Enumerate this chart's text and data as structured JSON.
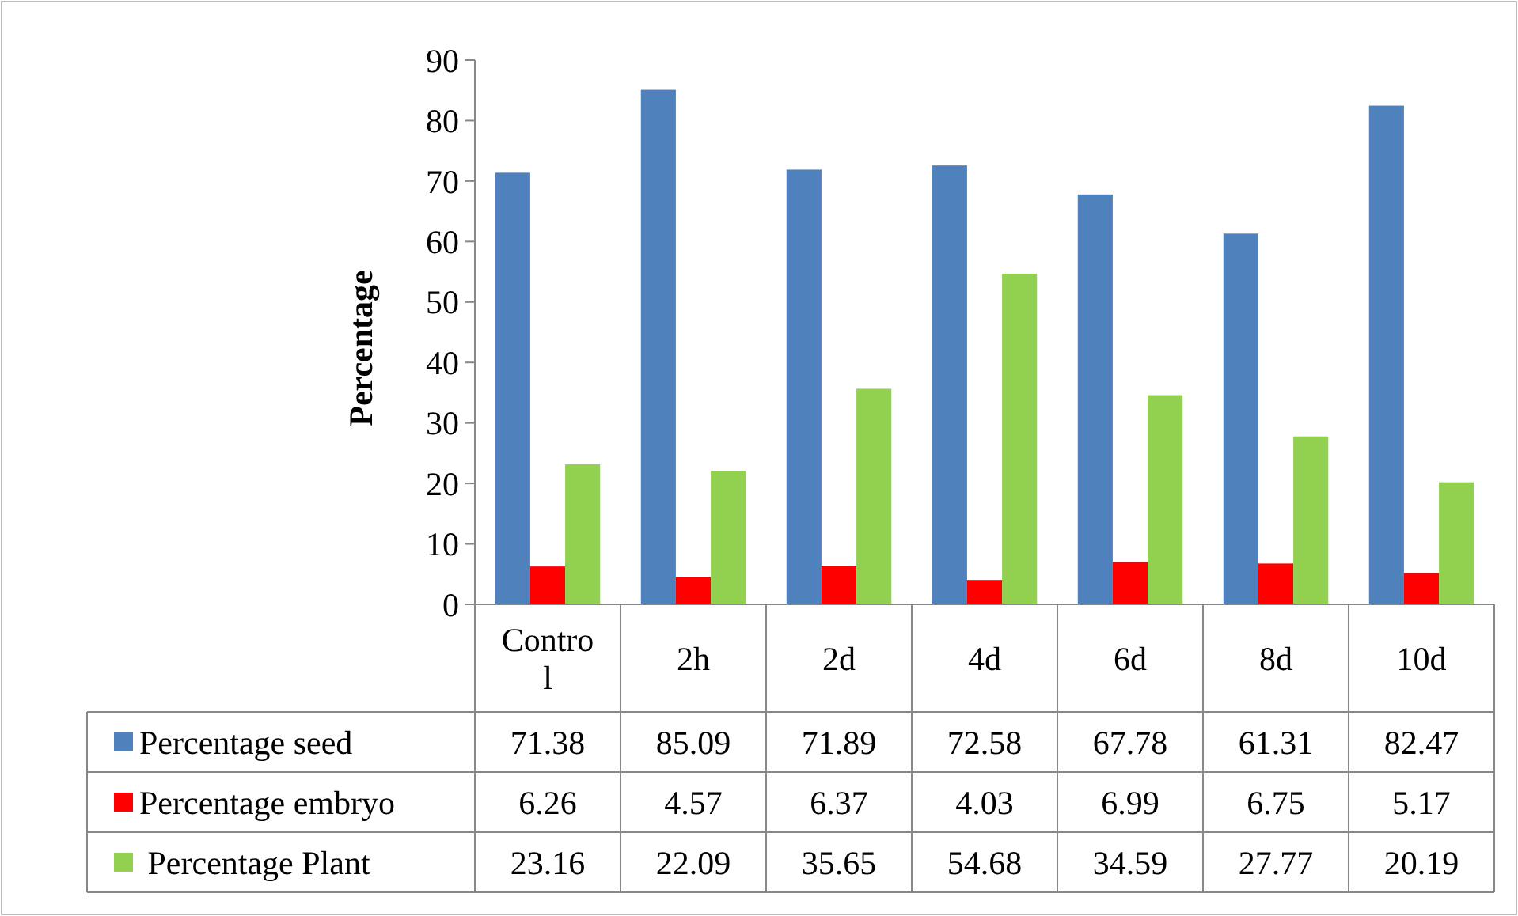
{
  "chart_data": {
    "type": "bar",
    "ylabel": "Percentage",
    "categories": [
      "Control",
      "2h",
      "2d",
      "4d",
      "6d",
      "8d",
      "10d"
    ],
    "series": [
      {
        "name": "Percentage seed",
        "color": "#4f81bd",
        "values": [
          71.38,
          85.09,
          71.89,
          72.58,
          67.78,
          61.31,
          82.47
        ]
      },
      {
        "name": "Percentage embryo",
        "color": "#ff0000",
        "values": [
          6.26,
          4.57,
          6.37,
          4.03,
          6.99,
          6.75,
          5.17
        ]
      },
      {
        "name": " Percentage Plant",
        "color": "#92d050",
        "values": [
          23.16,
          22.09,
          35.65,
          54.68,
          34.59,
          27.77,
          20.19
        ]
      }
    ],
    "ylim": [
      0,
      90
    ],
    "yticks": [
      0,
      10,
      20,
      30,
      40,
      50,
      60,
      70,
      80,
      90
    ],
    "grid": false,
    "legend": "bottom",
    "data_labels": true
  }
}
